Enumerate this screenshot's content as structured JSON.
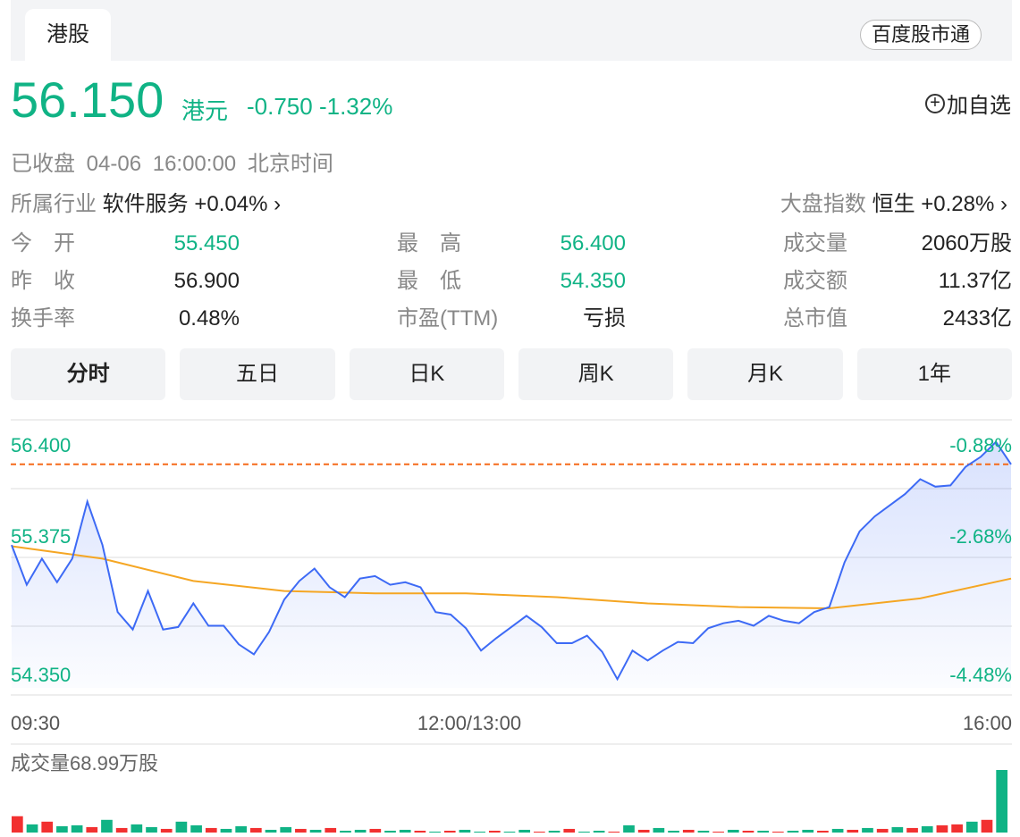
{
  "tabs": {
    "active": "港股",
    "baidu_button": "百度股市通"
  },
  "quote": {
    "price": "56.150",
    "unit": "港元",
    "change": "-0.750",
    "change_pct": "-1.32%",
    "add_watchlist": "加自选",
    "status": "已收盘",
    "time": "04-06 16:00:00",
    "timezone": "北京时间"
  },
  "industry": {
    "label": "所属行业",
    "name": "软件服务",
    "change": "+0.04%"
  },
  "index": {
    "label": "大盘指数",
    "name": "恒生",
    "change": "+0.28%"
  },
  "stats": [
    {
      "label": "今　开",
      "value": "55.450",
      "color": "green"
    },
    {
      "label": "最　高",
      "value": "56.400",
      "color": "green"
    },
    {
      "label": "成交量",
      "value": "2060万股",
      "color": "black"
    },
    {
      "label": "昨　收",
      "value": "56.900",
      "color": "black"
    },
    {
      "label": "最　低",
      "value": "54.350",
      "color": "green"
    },
    {
      "label": "成交额",
      "value": "11.37亿",
      "color": "black"
    },
    {
      "label": "换手率",
      "value": "0.48%",
      "color": "black"
    },
    {
      "label": "市盈(TTM)",
      "value": "亏损",
      "color": "black"
    },
    {
      "label": "总市值",
      "value": "2433亿",
      "color": "black"
    }
  ],
  "chart_tabs": [
    "分时",
    "五日",
    "日K",
    "周K",
    "月K",
    "1年"
  ],
  "colors": {
    "green": "#10b385",
    "red": "#f23030",
    "price_line": "#3d6af5",
    "avg_line": "#f5a623",
    "ref_line": "#f56a1a"
  },
  "chart_data": {
    "type": "line",
    "y_ticks": [
      "56.400",
      "55.375",
      "54.350"
    ],
    "y_pct_ticks": [
      "-0.88%",
      "-2.68%",
      "-4.48%"
    ],
    "ylim": [
      54.35,
      56.4
    ],
    "x_ticks": [
      "09:30",
      "12:00/13:00",
      "16:00"
    ],
    "reference_price": 56.15,
    "price": [
      55.5,
      55.18,
      55.39,
      55.2,
      55.39,
      55.85,
      55.5,
      54.96,
      54.82,
      55.13,
      54.82,
      54.84,
      55.03,
      54.85,
      54.85,
      54.7,
      54.62,
      54.8,
      55.06,
      55.21,
      55.31,
      55.16,
      55.08,
      55.23,
      55.25,
      55.18,
      55.2,
      55.16,
      54.96,
      54.94,
      54.83,
      54.65,
      54.75,
      54.84,
      54.93,
      54.84,
      54.71,
      54.71,
      54.77,
      54.64,
      54.42,
      54.65,
      54.57,
      54.65,
      54.72,
      54.71,
      54.83,
      54.87,
      54.89,
      54.85,
      54.93,
      54.89,
      54.87,
      54.96,
      55.0,
      55.36,
      55.61,
      55.73,
      55.82,
      55.91,
      56.03,
      55.97,
      55.98,
      56.13,
      56.21,
      56.33,
      56.15
    ],
    "average": [
      55.49,
      55.39,
      55.21,
      55.13,
      55.11,
      55.11,
      55.08,
      55.03,
      55.0,
      54.99,
      55.07,
      55.23
    ],
    "volume_label": "成交量68.99万股",
    "volume": [
      18,
      9,
      12,
      7,
      8,
      6,
      14,
      5,
      9,
      6,
      4,
      12,
      8,
      5,
      4,
      7,
      5,
      3,
      6,
      4,
      3,
      5,
      2,
      3,
      4,
      2,
      3,
      2,
      1,
      2,
      3,
      1,
      2,
      1,
      3,
      1,
      2,
      4,
      1,
      2,
      1,
      8,
      3,
      5,
      2,
      3,
      2,
      1,
      3,
      2,
      2,
      1,
      2,
      3,
      2,
      4,
      3,
      5,
      4,
      6,
      5,
      7,
      8,
      9,
      12,
      14,
      69
    ],
    "volume_up": [
      1,
      0,
      1,
      0,
      0,
      1,
      0,
      1,
      0,
      0,
      1,
      0,
      0,
      1,
      0,
      0,
      1,
      0,
      0,
      1,
      0,
      1,
      0,
      0,
      1,
      0,
      0,
      1,
      0,
      1,
      0,
      0,
      1,
      0,
      0,
      1,
      0,
      1,
      0,
      0,
      1,
      0,
      1,
      0,
      0,
      1,
      0,
      1,
      0,
      1,
      0,
      1,
      0,
      0,
      1,
      0,
      1,
      0,
      1,
      0,
      1,
      0,
      1,
      1,
      0,
      1,
      0
    ]
  }
}
